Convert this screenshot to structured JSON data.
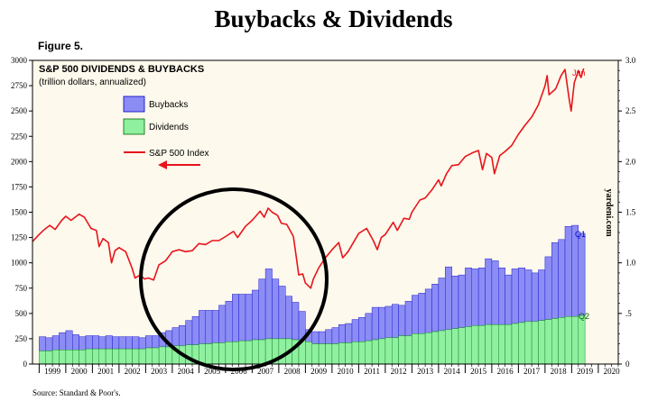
{
  "header": {
    "title": "Buybacks & Dividends",
    "figure_label": "Figure 5.",
    "source": "Source: Standard & Poor's."
  },
  "chart_data": {
    "type": "bar",
    "title": "S&P 500 DIVIDENDS & BUYBACKS",
    "subtitle": "(trillion dollars, annualized)",
    "watermark": "yardeni.com",
    "colors": {
      "buybacks": "#8c8cf5",
      "dividends": "#8ff0a0",
      "index": "#e8141c",
      "plot_bg": "#fdf9ec",
      "arrow": "#e8141c",
      "circle": "#000000"
    },
    "legend": [
      {
        "label": "Buybacks",
        "key": "buybacks"
      },
      {
        "label": "Dividends",
        "key": "dividends"
      },
      {
        "label": "S&P 500 Index",
        "key": "index"
      }
    ],
    "xlabels": [
      "1999",
      "2000",
      "2001",
      "2002",
      "2003",
      "2004",
      "2005",
      "2006",
      "2007",
      "2008",
      "2009",
      "2010",
      "2011",
      "2012",
      "2013",
      "2014",
      "2015",
      "2016",
      "2017",
      "2018",
      "2019",
      "2020"
    ],
    "xlim": [
      1998.75,
      2020.75
    ],
    "left_axis": {
      "label": "S&P 500 Index",
      "range": [
        0,
        3000
      ],
      "ticks": [
        0,
        250,
        500,
        750,
        1000,
        1250,
        1500,
        1750,
        2000,
        2250,
        2500,
        2750,
        3000
      ]
    },
    "right_axis": {
      "label": "trillion dollars",
      "range": [
        0,
        3.0
      ],
      "ticks": [
        "0",
        ".5",
        "1.0",
        "1.5",
        "2.0",
        "2.5",
        "3.0"
      ]
    },
    "quarters": [
      "1999Q1",
      "1999Q2",
      "1999Q3",
      "1999Q4",
      "2000Q1",
      "2000Q2",
      "2000Q3",
      "2000Q4",
      "2001Q1",
      "2001Q2",
      "2001Q3",
      "2001Q4",
      "2002Q1",
      "2002Q2",
      "2002Q3",
      "2002Q4",
      "2003Q1",
      "2003Q2",
      "2003Q3",
      "2003Q4",
      "2004Q1",
      "2004Q2",
      "2004Q3",
      "2004Q4",
      "2005Q1",
      "2005Q2",
      "2005Q3",
      "2005Q4",
      "2006Q1",
      "2006Q2",
      "2006Q3",
      "2006Q4",
      "2007Q1",
      "2007Q2",
      "2007Q3",
      "2007Q4",
      "2008Q1",
      "2008Q2",
      "2008Q3",
      "2008Q4",
      "2009Q1",
      "2009Q2",
      "2009Q3",
      "2009Q4",
      "2010Q1",
      "2010Q2",
      "2010Q3",
      "2010Q4",
      "2011Q1",
      "2011Q2",
      "2011Q3",
      "2011Q4",
      "2012Q1",
      "2012Q2",
      "2012Q3",
      "2012Q4",
      "2013Q1",
      "2013Q2",
      "2013Q3",
      "2013Q4",
      "2014Q1",
      "2014Q2",
      "2014Q3",
      "2014Q4",
      "2015Q1",
      "2015Q2",
      "2015Q3",
      "2015Q4",
      "2016Q1",
      "2016Q2",
      "2016Q3",
      "2016Q4",
      "2017Q1",
      "2017Q2",
      "2017Q3",
      "2017Q4",
      "2018Q1",
      "2018Q2",
      "2018Q3",
      "2018Q4",
      "2019Q1",
      "2019Q2"
    ],
    "series": [
      {
        "name": "Dividends",
        "axis": "right",
        "values": [
          0.13,
          0.13,
          0.14,
          0.14,
          0.14,
          0.14,
          0.14,
          0.15,
          0.15,
          0.15,
          0.15,
          0.15,
          0.15,
          0.15,
          0.15,
          0.15,
          0.16,
          0.16,
          0.17,
          0.17,
          0.18,
          0.18,
          0.19,
          0.19,
          0.2,
          0.2,
          0.21,
          0.21,
          0.22,
          0.22,
          0.23,
          0.23,
          0.24,
          0.24,
          0.25,
          0.25,
          0.25,
          0.25,
          0.24,
          0.24,
          0.22,
          0.2,
          0.2,
          0.2,
          0.2,
          0.21,
          0.21,
          0.22,
          0.22,
          0.23,
          0.24,
          0.25,
          0.26,
          0.26,
          0.28,
          0.28,
          0.3,
          0.3,
          0.31,
          0.32,
          0.33,
          0.34,
          0.35,
          0.36,
          0.37,
          0.38,
          0.38,
          0.39,
          0.39,
          0.39,
          0.39,
          0.4,
          0.41,
          0.42,
          0.42,
          0.43,
          0.44,
          0.45,
          0.46,
          0.47,
          0.47,
          0.48
        ]
      },
      {
        "name": "Buybacks",
        "axis": "right",
        "values": [
          0.14,
          0.13,
          0.14,
          0.17,
          0.19,
          0.15,
          0.13,
          0.13,
          0.13,
          0.12,
          0.13,
          0.12,
          0.12,
          0.12,
          0.12,
          0.11,
          0.12,
          0.12,
          0.14,
          0.16,
          0.18,
          0.2,
          0.24,
          0.28,
          0.33,
          0.33,
          0.32,
          0.37,
          0.4,
          0.47,
          0.46,
          0.46,
          0.49,
          0.6,
          0.69,
          0.59,
          0.52,
          0.42,
          0.37,
          0.28,
          0.12,
          0.12,
          0.12,
          0.14,
          0.16,
          0.18,
          0.19,
          0.22,
          0.24,
          0.27,
          0.32,
          0.31,
          0.31,
          0.33,
          0.3,
          0.34,
          0.38,
          0.4,
          0.43,
          0.47,
          0.52,
          0.62,
          0.52,
          0.52,
          0.58,
          0.56,
          0.57,
          0.65,
          0.63,
          0.56,
          0.49,
          0.54,
          0.54,
          0.51,
          0.48,
          0.5,
          0.62,
          0.75,
          0.77,
          0.89,
          0.9,
          0.81
        ]
      },
      {
        "name": "S&P 500 Index",
        "axis": "left",
        "points": [
          [
            1998.75,
            1210
          ],
          [
            1999.0,
            1280
          ],
          [
            1999.2,
            1330
          ],
          [
            1999.4,
            1370
          ],
          [
            1999.6,
            1330
          ],
          [
            1999.85,
            1420
          ],
          [
            2000.0,
            1460
          ],
          [
            2000.2,
            1420
          ],
          [
            2000.5,
            1480
          ],
          [
            2000.7,
            1450
          ],
          [
            2000.95,
            1340
          ],
          [
            2001.15,
            1320
          ],
          [
            2001.25,
            1160
          ],
          [
            2001.4,
            1240
          ],
          [
            2001.6,
            1200
          ],
          [
            2001.72,
            1000
          ],
          [
            2001.85,
            1120
          ],
          [
            2002.0,
            1150
          ],
          [
            2002.25,
            1110
          ],
          [
            2002.5,
            940
          ],
          [
            2002.6,
            850
          ],
          [
            2002.8,
            880
          ],
          [
            2002.95,
            840
          ],
          [
            2003.1,
            850
          ],
          [
            2003.3,
            830
          ],
          [
            2003.5,
            980
          ],
          [
            2003.75,
            1020
          ],
          [
            2004.0,
            1110
          ],
          [
            2004.25,
            1130
          ],
          [
            2004.5,
            1110
          ],
          [
            2004.75,
            1120
          ],
          [
            2005.0,
            1190
          ],
          [
            2005.25,
            1180
          ],
          [
            2005.5,
            1220
          ],
          [
            2005.75,
            1220
          ],
          [
            2006.0,
            1260
          ],
          [
            2006.3,
            1310
          ],
          [
            2006.45,
            1250
          ],
          [
            2006.75,
            1360
          ],
          [
            2007.0,
            1420
          ],
          [
            2007.3,
            1510
          ],
          [
            2007.45,
            1450
          ],
          [
            2007.6,
            1540
          ],
          [
            2007.75,
            1500
          ],
          [
            2007.95,
            1470
          ],
          [
            2008.1,
            1390
          ],
          [
            2008.3,
            1380
          ],
          [
            2008.55,
            1260
          ],
          [
            2008.75,
            880
          ],
          [
            2008.9,
            890
          ],
          [
            2009.0,
            800
          ],
          [
            2009.2,
            750
          ],
          [
            2009.3,
            840
          ],
          [
            2009.5,
            950
          ],
          [
            2009.75,
            1050
          ],
          [
            2010.0,
            1130
          ],
          [
            2010.25,
            1200
          ],
          [
            2010.4,
            1050
          ],
          [
            2010.6,
            1110
          ],
          [
            2010.8,
            1200
          ],
          [
            2011.0,
            1290
          ],
          [
            2011.3,
            1340
          ],
          [
            2011.55,
            1220
          ],
          [
            2011.7,
            1130
          ],
          [
            2011.85,
            1250
          ],
          [
            2012.0,
            1280
          ],
          [
            2012.3,
            1400
          ],
          [
            2012.45,
            1320
          ],
          [
            2012.7,
            1440
          ],
          [
            2012.9,
            1430
          ],
          [
            2013.0,
            1500
          ],
          [
            2013.3,
            1620
          ],
          [
            2013.5,
            1640
          ],
          [
            2013.75,
            1720
          ],
          [
            2014.0,
            1820
          ],
          [
            2014.1,
            1760
          ],
          [
            2014.3,
            1880
          ],
          [
            2014.5,
            1960
          ],
          [
            2014.75,
            1970
          ],
          [
            2015.0,
            2050
          ],
          [
            2015.3,
            2090
          ],
          [
            2015.5,
            2110
          ],
          [
            2015.65,
            1920
          ],
          [
            2015.8,
            2080
          ],
          [
            2016.0,
            2040
          ],
          [
            2016.1,
            1880
          ],
          [
            2016.3,
            2060
          ],
          [
            2016.5,
            2100
          ],
          [
            2016.75,
            2160
          ],
          [
            2017.0,
            2270
          ],
          [
            2017.25,
            2360
          ],
          [
            2017.5,
            2440
          ],
          [
            2017.75,
            2560
          ],
          [
            2018.0,
            2750
          ],
          [
            2018.08,
            2850
          ],
          [
            2018.15,
            2660
          ],
          [
            2018.4,
            2720
          ],
          [
            2018.6,
            2850
          ],
          [
            2018.75,
            2910
          ],
          [
            2018.9,
            2630
          ],
          [
            2018.98,
            2500
          ],
          [
            2019.1,
            2780
          ],
          [
            2019.25,
            2900
          ],
          [
            2019.35,
            2830
          ],
          [
            2019.45,
            2920
          ]
        ]
      }
    ],
    "annotations": {
      "bar_end": "Q1",
      "div_end": "Q2",
      "index_end": "Jun"
    }
  }
}
